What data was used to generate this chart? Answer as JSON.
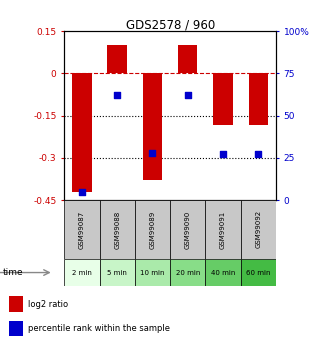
{
  "title": "GDS2578 / 960",
  "samples": [
    "GSM99087",
    "GSM99088",
    "GSM99089",
    "GSM99090",
    "GSM99091",
    "GSM99092"
  ],
  "timepoints": [
    "2 min",
    "5 min",
    "10 min",
    "20 min",
    "40 min",
    "60 min"
  ],
  "log2_ratio": [
    -0.42,
    0.1,
    -0.38,
    0.1,
    -0.185,
    -0.185
  ],
  "percentile_rank": [
    5,
    62,
    28,
    62,
    27,
    27
  ],
  "ylim_left": [
    -0.45,
    0.15
  ],
  "ylim_right": [
    0,
    100
  ],
  "yticks_left": [
    0.15,
    0,
    -0.15,
    -0.3,
    -0.45
  ],
  "yticks_right": [
    100,
    75,
    50,
    25,
    0
  ],
  "bar_color": "#cc0000",
  "dot_color": "#0000cc",
  "dashed_line_color": "#cc0000",
  "dotted_line_color": "#000000",
  "bg_color": "#ffffff",
  "gsm_bg": "#c8c8c8",
  "time_colors": [
    "#e8ffe8",
    "#c8f5c8",
    "#aaeaaa",
    "#88dd88",
    "#66cc66",
    "#44bb44"
  ],
  "legend_bar_label": "log2 ratio",
  "legend_dot_label": "percentile rank within the sample",
  "bar_width": 0.55
}
